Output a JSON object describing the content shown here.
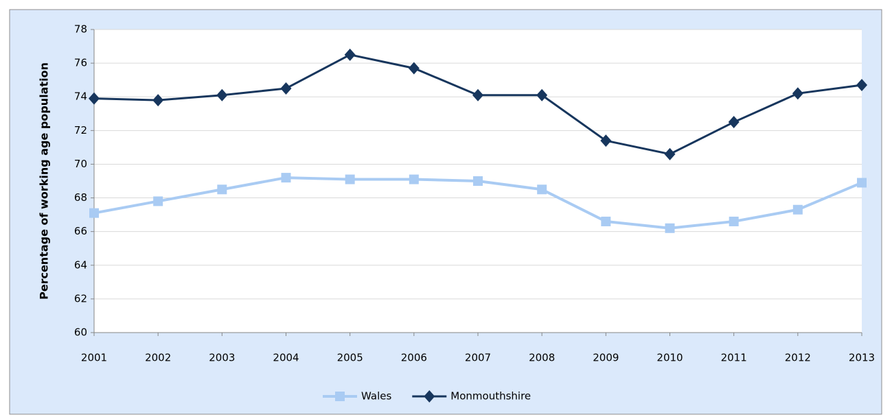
{
  "chart_data": {
    "type": "line",
    "y_label": "Percentage of working age population",
    "categories": [
      "2001",
      "2002",
      "2003",
      "2004",
      "2005",
      "2006",
      "2007",
      "2008",
      "2009",
      "2010",
      "2011",
      "2012",
      "2013"
    ],
    "series": [
      {
        "name": "Wales",
        "color": "#a9cbf3",
        "marker": "square",
        "values": [
          67.1,
          67.8,
          68.5,
          69.2,
          69.1,
          69.1,
          69.0,
          68.5,
          66.6,
          66.2,
          66.6,
          67.3,
          68.9
        ]
      },
      {
        "name": "Monmouthshire",
        "color": "#17365d",
        "marker": "diamond",
        "values": [
          73.9,
          73.8,
          74.1,
          74.5,
          76.5,
          75.7,
          74.1,
          74.1,
          71.4,
          70.6,
          72.5,
          74.2,
          74.7
        ]
      }
    ],
    "ylim": [
      60,
      78
    ],
    "yticks": [
      60,
      62,
      64,
      66,
      68,
      70,
      72,
      74,
      76,
      78
    ],
    "grid": true,
    "legend": "bottom"
  }
}
